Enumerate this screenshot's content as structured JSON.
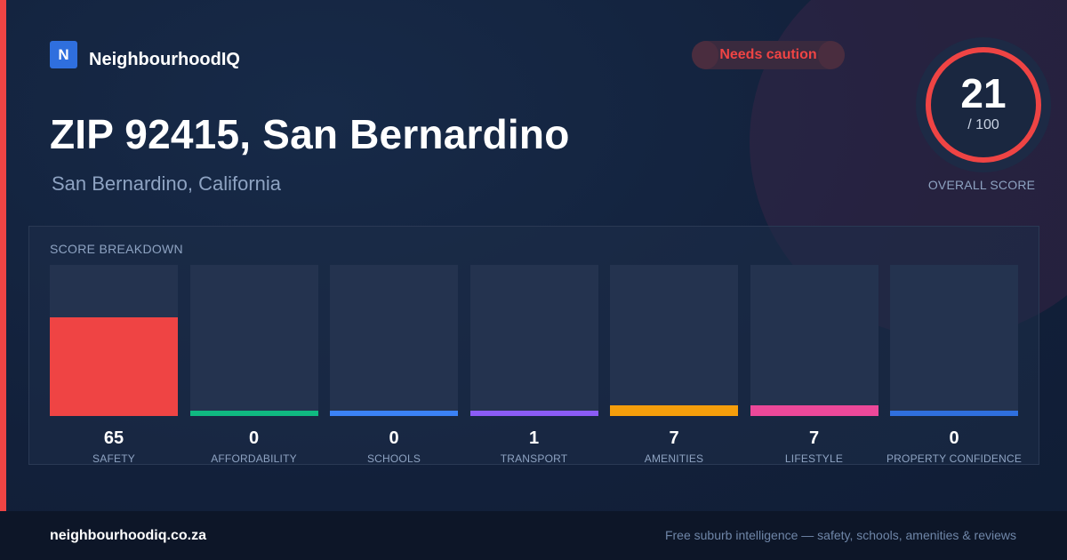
{
  "brand": {
    "logo_letter": "N",
    "name": "NeighbourhoodIQ"
  },
  "badge": {
    "label": "Needs caution",
    "color": "#ef4444"
  },
  "location": {
    "title": "ZIP 92415, San Bernardino",
    "subtitle": "San Bernardino, California"
  },
  "score": {
    "value": "21",
    "max_label": "/ 100",
    "value_fraction": 0.21,
    "label": "OVERALL SCORE",
    "ring_color": "#ef4444"
  },
  "breakdown": {
    "title": "SCORE BREAKDOWN",
    "items": [
      {
        "label": "SAFETY",
        "value": "65",
        "fraction": 0.65,
        "color": "#ef4444"
      },
      {
        "label": "AFFORDABILITY",
        "value": "0",
        "fraction": 0.0,
        "color": "#10b981"
      },
      {
        "label": "SCHOOLS",
        "value": "0",
        "fraction": 0.0,
        "color": "#3b82f6"
      },
      {
        "label": "TRANSPORT",
        "value": "1",
        "fraction": 0.01,
        "color": "#8b5cf6"
      },
      {
        "label": "AMENITIES",
        "value": "7",
        "fraction": 0.07,
        "color": "#f59e0b"
      },
      {
        "label": "LIFESTYLE",
        "value": "7",
        "fraction": 0.07,
        "color": "#ec4899"
      },
      {
        "label": "PROPERTY CONFIDENCE",
        "value": "0",
        "fraction": 0.0,
        "color": "#2f6fde"
      }
    ]
  },
  "footer": {
    "url": "neighbourhoodiq.co.za",
    "tagline": "Free suburb intelligence — safety, schools, amenities & reviews"
  }
}
